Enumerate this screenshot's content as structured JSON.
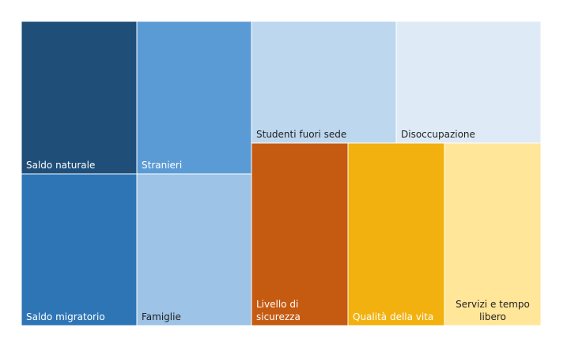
{
  "chart_data": {
    "type": "treemap",
    "title": "",
    "tiles": [
      {
        "label": "Saldo naturale",
        "lines": [
          "Saldo naturale"
        ],
        "color": "#1f4e79",
        "text_color": "#ffffff"
      },
      {
        "label": "Stranieri",
        "lines": [
          "Stranieri"
        ],
        "color": "#5b9bd5",
        "text_color": "#ffffff"
      },
      {
        "label": "Saldo migratorio",
        "lines": [
          "Saldo migratorio"
        ],
        "color": "#2e75b6",
        "text_color": "#ffffff"
      },
      {
        "label": "Famiglie",
        "lines": [
          "Famiglie"
        ],
        "color": "#9dc3e6",
        "text_color": "#1f1f1f"
      },
      {
        "label": "Studenti fuori sede",
        "lines": [
          "Studenti fuori sede"
        ],
        "color": "#bdd7ee",
        "text_color": "#1f1f1f"
      },
      {
        "label": "Disoccupazione",
        "lines": [
          "Disoccupazione"
        ],
        "color": "#deebf7",
        "text_color": "#1f1f1f"
      },
      {
        "label": "Livello di sicurezza",
        "lines": [
          "Livello di",
          "sicurezza"
        ],
        "color": "#c55a11",
        "text_color": "#ffffff"
      },
      {
        "label": "Qualità della vita",
        "lines": [
          "Qualità della vita"
        ],
        "color": "#f4b183",
        "fill": "#f2b10f",
        "text_color": "#ffffff"
      },
      {
        "label": "Servizi e tempo libero",
        "lines": [
          "Servizi e tempo",
          "libero"
        ],
        "color": "#ffe699",
        "text_color": "#1f1f1f"
      }
    ]
  }
}
